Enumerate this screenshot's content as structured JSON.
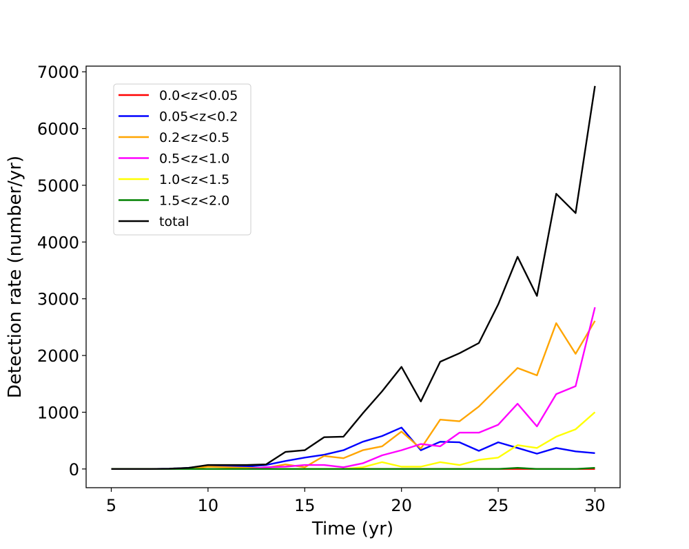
{
  "chart_data": {
    "type": "line",
    "title": "",
    "xlabel": "Time (yr)",
    "ylabel": "Detection rate (number/yr)",
    "xlim": [
      3.7,
      31.3
    ],
    "ylim": [
      -330,
      7100
    ],
    "xticks": [
      5,
      10,
      15,
      20,
      25,
      30
    ],
    "yticks": [
      0,
      1000,
      2000,
      3000,
      4000,
      5000,
      6000,
      7000
    ],
    "grid": false,
    "legend_position": "top-left",
    "x": [
      5,
      6,
      7,
      8,
      9,
      10,
      11,
      12,
      13,
      14,
      15,
      16,
      17,
      18,
      19,
      20,
      21,
      22,
      23,
      24,
      25,
      26,
      27,
      28,
      29,
      30
    ],
    "series": [
      {
        "name": "0.0<z<0.05",
        "color": "#ff0000",
        "values": [
          0,
          0,
          0,
          0,
          0,
          0,
          0,
          0,
          0,
          0,
          0,
          0,
          0,
          0,
          0,
          0,
          0,
          0,
          0,
          0,
          0,
          0,
          0,
          0,
          0,
          0
        ]
      },
      {
        "name": "0.05<z<0.2",
        "color": "#0000ff",
        "values": [
          0,
          0,
          0,
          5,
          20,
          60,
          50,
          40,
          70,
          140,
          200,
          250,
          330,
          480,
          580,
          730,
          330,
          480,
          470,
          320,
          470,
          370,
          270,
          370,
          310,
          280
        ]
      },
      {
        "name": "0.2<z<0.5",
        "color": "#ffa500",
        "values": [
          0,
          0,
          0,
          0,
          0,
          40,
          30,
          20,
          20,
          80,
          30,
          230,
          190,
          330,
          400,
          660,
          360,
          870,
          840,
          1100,
          1440,
          1780,
          1650,
          2570,
          2030,
          2610
        ]
      },
      {
        "name": "0.5<z<1.0",
        "color": "#ff00ff",
        "values": [
          0,
          0,
          0,
          0,
          0,
          0,
          0,
          0,
          30,
          40,
          70,
          70,
          30,
          100,
          240,
          330,
          440,
          400,
          640,
          640,
          780,
          1150,
          750,
          1320,
          1460,
          2850
        ]
      },
      {
        "name": "1.0<z<1.5",
        "color": "#ffff00",
        "values": [
          0,
          0,
          0,
          0,
          0,
          0,
          0,
          0,
          0,
          0,
          0,
          0,
          0,
          30,
          120,
          40,
          40,
          120,
          70,
          160,
          200,
          420,
          370,
          570,
          700,
          1000
        ]
      },
      {
        "name": "1.5<z<2.0",
        "color": "#008000",
        "values": [
          0,
          0,
          0,
          0,
          0,
          0,
          0,
          0,
          0,
          0,
          0,
          0,
          0,
          0,
          0,
          0,
          0,
          0,
          0,
          0,
          0,
          20,
          0,
          0,
          0,
          20
        ]
      },
      {
        "name": "total",
        "color": "#000000",
        "values": [
          0,
          0,
          0,
          5,
          20,
          70,
          70,
          70,
          80,
          300,
          330,
          560,
          570,
          980,
          1370,
          1800,
          1190,
          1890,
          2040,
          2220,
          2900,
          3740,
          3050,
          4850,
          4510,
          6750
        ]
      }
    ]
  }
}
